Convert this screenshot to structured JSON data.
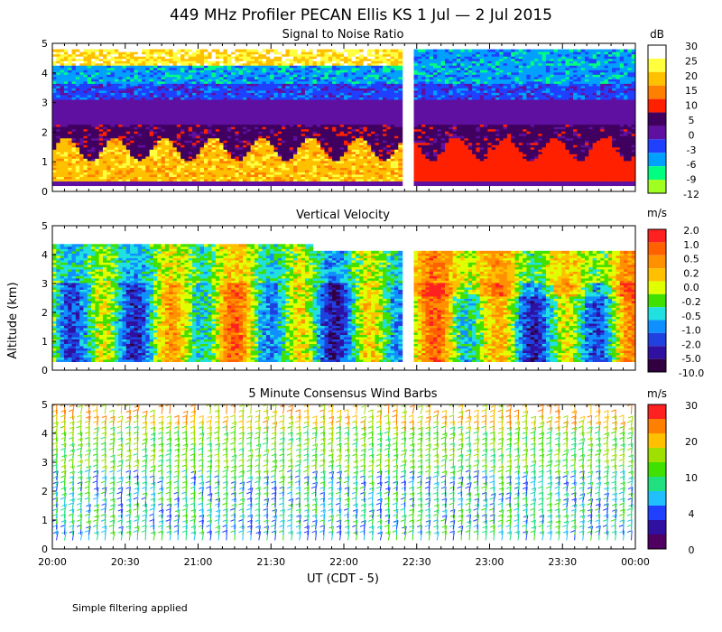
{
  "title": "449 MHz Profiler PECAN Ellis KS  1 Jul —  2 Jul 2015",
  "footer": "Simple filtering applied",
  "chart_data": [
    {
      "type": "heatmap",
      "title": "Signal to Noise Ratio",
      "ylabel": "Altitude (km)",
      "xlabel": "UT  (CDT - 5)",
      "ylim": [
        0,
        5
      ],
      "yticks": [
        "0",
        "1",
        "2",
        "3",
        "4",
        "5"
      ],
      "xticks": [
        "20:00",
        "20:30",
        "21:00",
        "21:30",
        "22:00",
        "22:30",
        "23:00",
        "23:30",
        "00:00"
      ],
      "x_range_hours": [
        20,
        24
      ],
      "data_gap_hours": [
        22.41,
        22.47
      ],
      "colorbar": {
        "unit": "dB",
        "labels": [
          "30",
          "25",
          "20",
          "15",
          "10",
          "5",
          "0",
          "-3",
          "-6",
          "-9",
          "-12"
        ],
        "colors": [
          "#ffffff",
          "#ffff40",
          "#ffc000",
          "#ff8000",
          "#ff2000",
          "#400060",
          "#6010a0",
          "#2040ff",
          "#00a0ff",
          "#00ff80",
          "#a0ff20"
        ]
      }
    },
    {
      "type": "heatmap",
      "title": "Vertical Velocity",
      "ylim": [
        0,
        5
      ],
      "yticks": [
        "0",
        "1",
        "2",
        "3",
        "4",
        "5"
      ],
      "colorbar": {
        "unit": "m/s",
        "labels": [
          "2.0",
          "1.0",
          "0.5",
          "0.2",
          "0.0",
          "-0.2",
          "-0.5",
          "-1.0",
          "-2.0",
          "-5.0",
          "-10.0"
        ],
        "colors": [
          "#ff2020",
          "#ff6000",
          "#ff9000",
          "#ffc000",
          "#e0ff00",
          "#40e000",
          "#20e0e0",
          "#1090ff",
          "#2040e0",
          "#3010a0",
          "#300040"
        ]
      }
    },
    {
      "type": "scatter",
      "title": "5 Minute Consensus Wind Barbs",
      "ylim": [
        0,
        5
      ],
      "yticks": [
        "0",
        "1",
        "2",
        "3",
        "4",
        "5"
      ],
      "colorbar": {
        "unit": "m/s",
        "labels": [
          "30",
          "20",
          "10",
          "4",
          "0"
        ],
        "colors": [
          "#ff2020",
          "#ff8000",
          "#ffc000",
          "#a0e000",
          "#40e000",
          "#20e080",
          "#20c0ff",
          "#2040ff",
          "#3010a0",
          "#500060"
        ]
      }
    }
  ]
}
